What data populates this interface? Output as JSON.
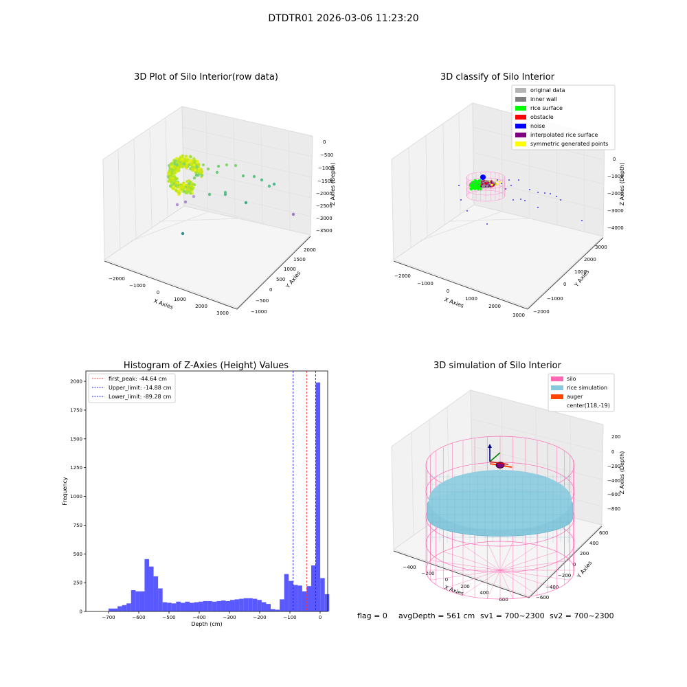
{
  "suptitle": "DTDTR01 2026-03-06 11:23:20",
  "footer": {
    "flag": "flag = 0",
    "avg_depth": "avgDepth = 561 cm",
    "sv1": "sv1 = 700~2300",
    "sv2": "sv2 = 700~2300"
  },
  "colors": {
    "bar": "#5050ff",
    "first_peak": "#ff3333",
    "limit": "#1a1aee",
    "silo": "#ff69b4",
    "rice": "#87c8dc",
    "auger": "#ff4500",
    "original": "#b4b4b4",
    "inner_wall": "#808080",
    "rice_surface": "#00ff00",
    "obstacle": "#ff0000",
    "noise": "#0000ff",
    "interp": "#800080",
    "sym": "#ffff00"
  },
  "chart_data": [
    {
      "type": "scatter",
      "subtype": "3d",
      "title": "3D Plot of Silo Interior(row data)",
      "xlabel": "X Axies",
      "ylabel": "Y Axies",
      "zlabel": "Z Axies (Depth)",
      "xticks": [
        "−2000",
        "−1000",
        "0",
        "1000",
        "2000",
        "3000"
      ],
      "yticks": [
        "−1000",
        "−500",
        "0",
        "500",
        "1000",
        "1500",
        "2000"
      ],
      "zticks": [
        "0",
        "−500",
        "−1000",
        "−1500",
        "−2000",
        "−2500",
        "−3000",
        "−3500"
      ]
    },
    {
      "type": "scatter",
      "subtype": "3d",
      "title": "3D classify of Silo Interior",
      "xlabel": "X Axies",
      "ylabel": "Y Axies",
      "zlabel": "Z Axies (Depth)",
      "xticks": [
        "−2000",
        "−1000",
        "0",
        "1000",
        "2000",
        "3000"
      ],
      "yticks": [
        "−2000",
        "−1000",
        "0",
        "1000",
        "2000",
        "3000"
      ],
      "zticks": [
        "0",
        "−1000",
        "−2000",
        "−3000",
        "−4000"
      ],
      "legend_position": "top-right",
      "legend": [
        "original data",
        "inner wall",
        "rice surface",
        "obstacle",
        "noise",
        "interpolated rice surface",
        "symmetric generated points"
      ]
    },
    {
      "type": "bar",
      "subtype": "histogram",
      "title": "Histogram of Z-Axies (Height) Values",
      "xlabel": "Depth (cm)",
      "ylabel": "Frequency",
      "xlim": [
        -775,
        25
      ],
      "ylim": [
        0,
        2090
      ],
      "xticks": [
        -700,
        -600,
        -500,
        -400,
        -300,
        -200,
        -100,
        0
      ],
      "yticks": [
        0,
        250,
        500,
        750,
        1000,
        1250,
        1500,
        1750,
        2000
      ],
      "bin_width": 14.9,
      "bin_start": -700,
      "values": [
        25,
        25,
        45,
        55,
        70,
        185,
        175,
        175,
        455,
        390,
        305,
        200,
        80,
        75,
        70,
        85,
        75,
        85,
        75,
        80,
        85,
        90,
        90,
        85,
        90,
        95,
        90,
        100,
        105,
        110,
        115,
        115,
        110,
        100,
        80,
        65,
        20,
        15,
        105,
        325,
        265,
        230,
        225,
        175,
        220,
        400,
        1990,
        290,
        150
      ],
      "vlines": [
        {
          "label": "first_peak: -44.64 cm",
          "x": -44.64,
          "kind": "first_peak"
        },
        {
          "label": "Upper_limit: -14.88 cm",
          "x": -14.88,
          "kind": "limit"
        },
        {
          "label": "Lower_limit: -89.28 cm",
          "x": -89.28,
          "kind": "limit"
        }
      ],
      "legend_position": "top-left"
    },
    {
      "type": "scatter",
      "subtype": "3d",
      "title": "3D simulation of Silo Interior",
      "xlabel": "X Axies",
      "ylabel": "Y Axies",
      "zlabel": "Z Axies (Depth)",
      "xticks": [
        "−400",
        "−200",
        "0",
        "200",
        "400",
        "600"
      ],
      "yticks": [
        "−600",
        "−400",
        "−200",
        "0",
        "200",
        "400",
        "600"
      ],
      "zticks": [
        "200",
        "0",
        "−200",
        "−400",
        "−600",
        "−800"
      ],
      "legend_position": "top-right",
      "legend": [
        "silo",
        "rice simulation",
        "auger",
        "center(118,-19)"
      ]
    }
  ]
}
